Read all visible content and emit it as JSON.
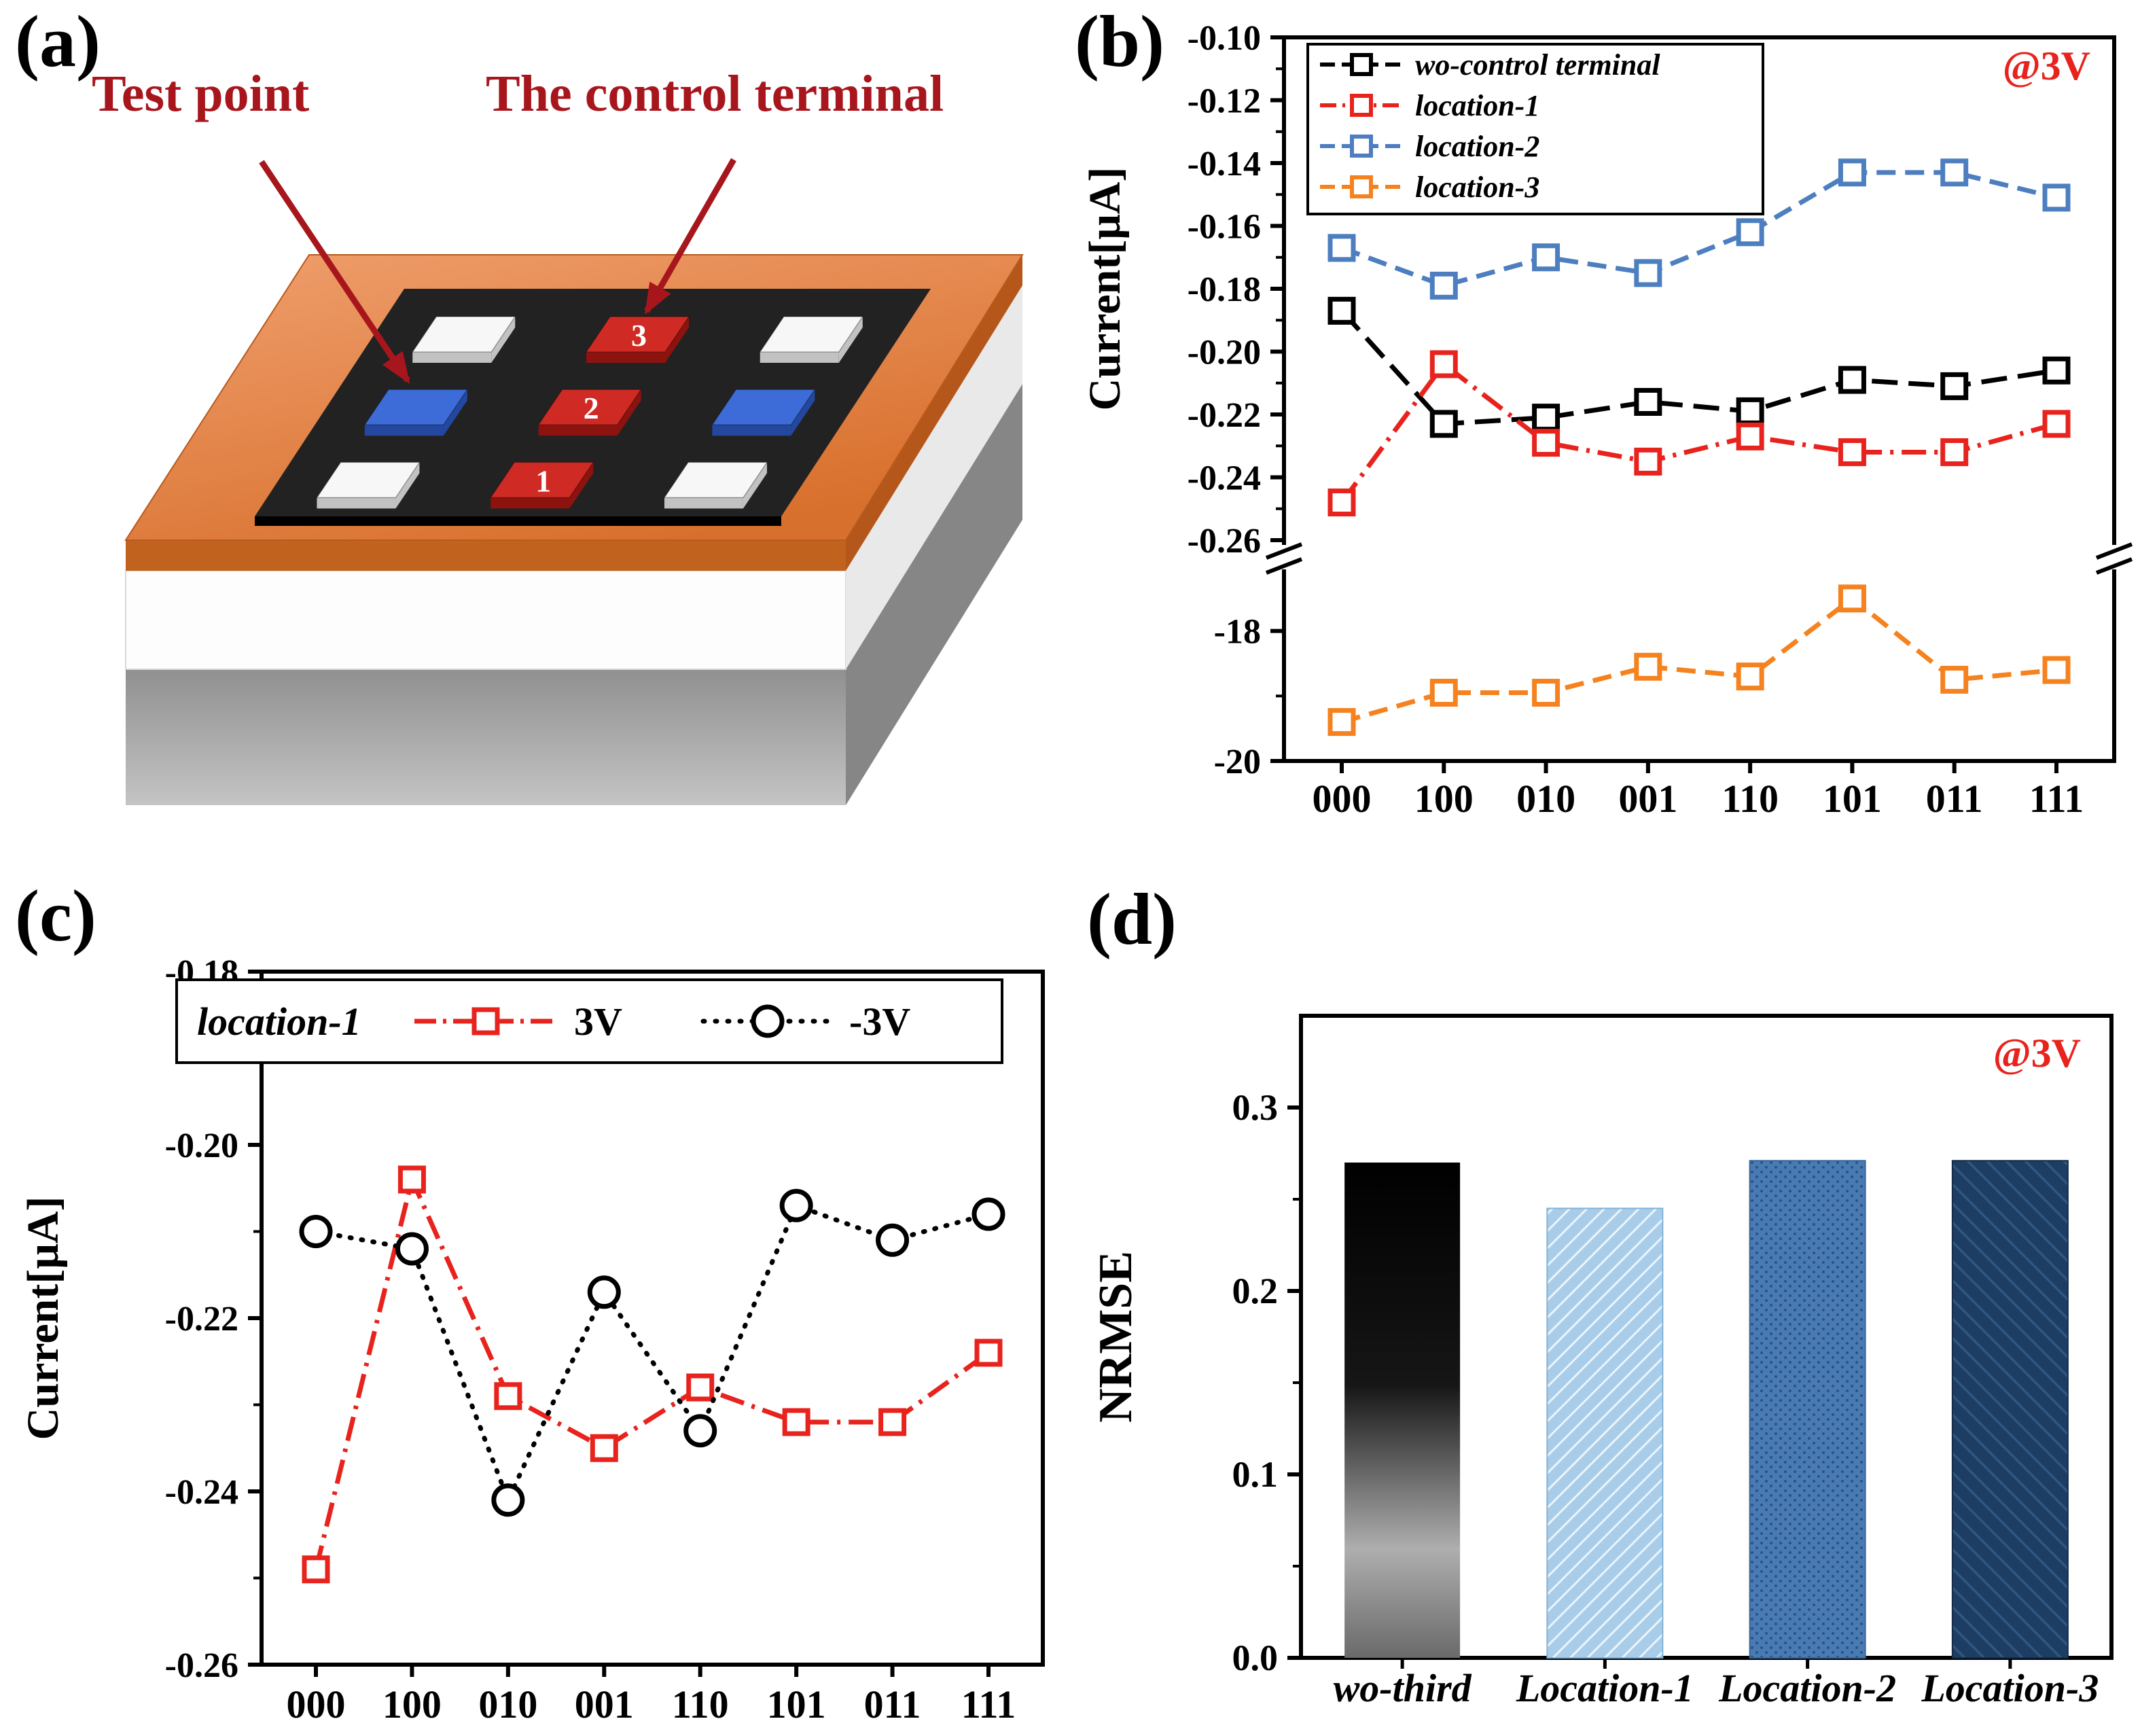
{
  "panels": {
    "a": {
      "label": "(a)",
      "test_point_label": "Test point",
      "control_terminal_label": "The control terminal",
      "pads": [
        {
          "row": 0,
          "col": 0,
          "type": "electrode",
          "label": ""
        },
        {
          "row": 0,
          "col": 1,
          "type": "control",
          "label": "3"
        },
        {
          "row": 0,
          "col": 2,
          "type": "electrode",
          "label": ""
        },
        {
          "row": 1,
          "col": 0,
          "type": "test",
          "label": ""
        },
        {
          "row": 1,
          "col": 1,
          "type": "control",
          "label": "2"
        },
        {
          "row": 1,
          "col": 2,
          "type": "test",
          "label": ""
        },
        {
          "row": 2,
          "col": 0,
          "type": "electrode",
          "label": ""
        },
        {
          "row": 2,
          "col": 1,
          "type": "control",
          "label": "1"
        },
        {
          "row": 2,
          "col": 2,
          "type": "electrode",
          "label": ""
        }
      ],
      "colors": {
        "annotation": "#a8161d",
        "electrode_top": "#f7f7f7",
        "electrode_side": "#c2c2c2",
        "control_top": "#d02a24",
        "control_side": "#8d130f",
        "test_top": "#3d6cd8",
        "test_side": "#24479f"
      }
    },
    "b": {
      "label": "(b)"
    },
    "c": {
      "label": "(c)"
    },
    "d": {
      "label": "(d)"
    }
  },
  "chart_data": [
    {
      "id": "b",
      "type": "line",
      "annotation": "@3V",
      "annotation_color": "#e8231d",
      "ylabel": "Current[μA]",
      "categories": [
        "000",
        "100",
        "010",
        "001",
        "110",
        "101",
        "011",
        "111"
      ],
      "broken_axis": true,
      "legend_position": "top-left",
      "axes": {
        "top": {
          "ylim": [
            -0.26,
            -0.1
          ],
          "ticks": [
            {
              "v": -0.1,
              "label": "-0.10"
            },
            {
              "v": -0.12,
              "label": "-0.12"
            },
            {
              "v": -0.14,
              "label": "-0.14"
            },
            {
              "v": -0.16,
              "label": "-0.16"
            },
            {
              "v": -0.18,
              "label": "-0.18"
            },
            {
              "v": -0.2,
              "label": "-0.20"
            },
            {
              "v": -0.22,
              "label": "-0.22"
            },
            {
              "v": -0.24,
              "label": "-0.24"
            },
            {
              "v": -0.26,
              "label": "-0.26"
            }
          ]
        },
        "bottom": {
          "ylim": [
            -20,
            -17
          ],
          "ticks": [
            {
              "v": -18,
              "label": "-18"
            },
            {
              "v": -20,
              "label": "-20"
            }
          ]
        }
      },
      "series": [
        {
          "name": "wo-control terminal",
          "color": "#000000",
          "dash": "38 16",
          "marker": "square",
          "axis": "top",
          "values": [
            -0.187,
            -0.223,
            -0.221,
            -0.216,
            -0.219,
            -0.209,
            -0.211,
            -0.206
          ]
        },
        {
          "name": "location-1",
          "color": "#e8231d",
          "dash": "36 12 5 12",
          "marker": "square",
          "axis": "top",
          "values": [
            -0.248,
            -0.204,
            -0.229,
            -0.235,
            -0.227,
            -0.232,
            -0.232,
            -0.223
          ]
        },
        {
          "name": "location-2",
          "color": "#4d7ebf",
          "dash": "28 14",
          "marker": "square",
          "axis": "top",
          "values": [
            -0.167,
            -0.179,
            -0.17,
            -0.175,
            -0.162,
            -0.143,
            -0.143,
            -0.151
          ]
        },
        {
          "name": "location-3",
          "color": "#f5821f",
          "dash": "28 14",
          "marker": "square",
          "axis": "bottom",
          "values": [
            -19.4,
            -18.95,
            -18.95,
            -18.55,
            -18.7,
            -17.5,
            -18.75,
            -18.6
          ]
        }
      ]
    },
    {
      "id": "c",
      "type": "line",
      "legend_title": "location-1",
      "ylabel": "Current[μA]",
      "categories": [
        "000",
        "100",
        "010",
        "001",
        "110",
        "101",
        "011",
        "111"
      ],
      "ylim": [
        -0.26,
        -0.18
      ],
      "ticks": [
        {
          "v": -0.18,
          "label": "-0.18"
        },
        {
          "v": -0.2,
          "label": "-0.20"
        },
        {
          "v": -0.22,
          "label": "-0.22"
        },
        {
          "v": -0.24,
          "label": "-0.24"
        },
        {
          "v": -0.26,
          "label": "-0.26"
        }
      ],
      "series": [
        {
          "name": "3V",
          "color": "#e8231d",
          "dash": "36 12 5 12",
          "marker": "square",
          "values": [
            -0.249,
            -0.204,
            -0.229,
            -0.235,
            -0.228,
            -0.232,
            -0.232,
            -0.224
          ]
        },
        {
          "name": "-3V",
          "color": "#000000",
          "dash": "2 15",
          "linecap": "round",
          "marker": "circle",
          "values": [
            -0.21,
            -0.212,
            -0.241,
            -0.217,
            -0.233,
            -0.207,
            -0.211,
            -0.208
          ]
        }
      ]
    },
    {
      "id": "d",
      "type": "bar",
      "annotation": "@3V",
      "annotation_color": "#e8231d",
      "ylabel": "NRMSE",
      "categories": [
        "wo-third",
        "Location-1",
        "Location-2",
        "Location-3"
      ],
      "values": [
        0.27,
        0.245,
        0.271,
        0.271
      ],
      "ylim": [
        0,
        0.35
      ],
      "ticks": [
        {
          "v": 0.0,
          "label": "0.0"
        },
        {
          "v": 0.1,
          "label": "0.1"
        },
        {
          "v": 0.2,
          "label": "0.2"
        },
        {
          "v": 0.3,
          "label": "0.3"
        }
      ],
      "bar_styles": [
        {
          "fill_id": "grad-wo",
          "stroke": "none"
        },
        {
          "fill_id": "pat-loc1",
          "stroke": "#7fb2d9"
        },
        {
          "fill_id": "pat-loc2",
          "stroke": "#38679e"
        },
        {
          "fill_id": "pat-loc3",
          "stroke": "#142c49"
        }
      ]
    }
  ]
}
